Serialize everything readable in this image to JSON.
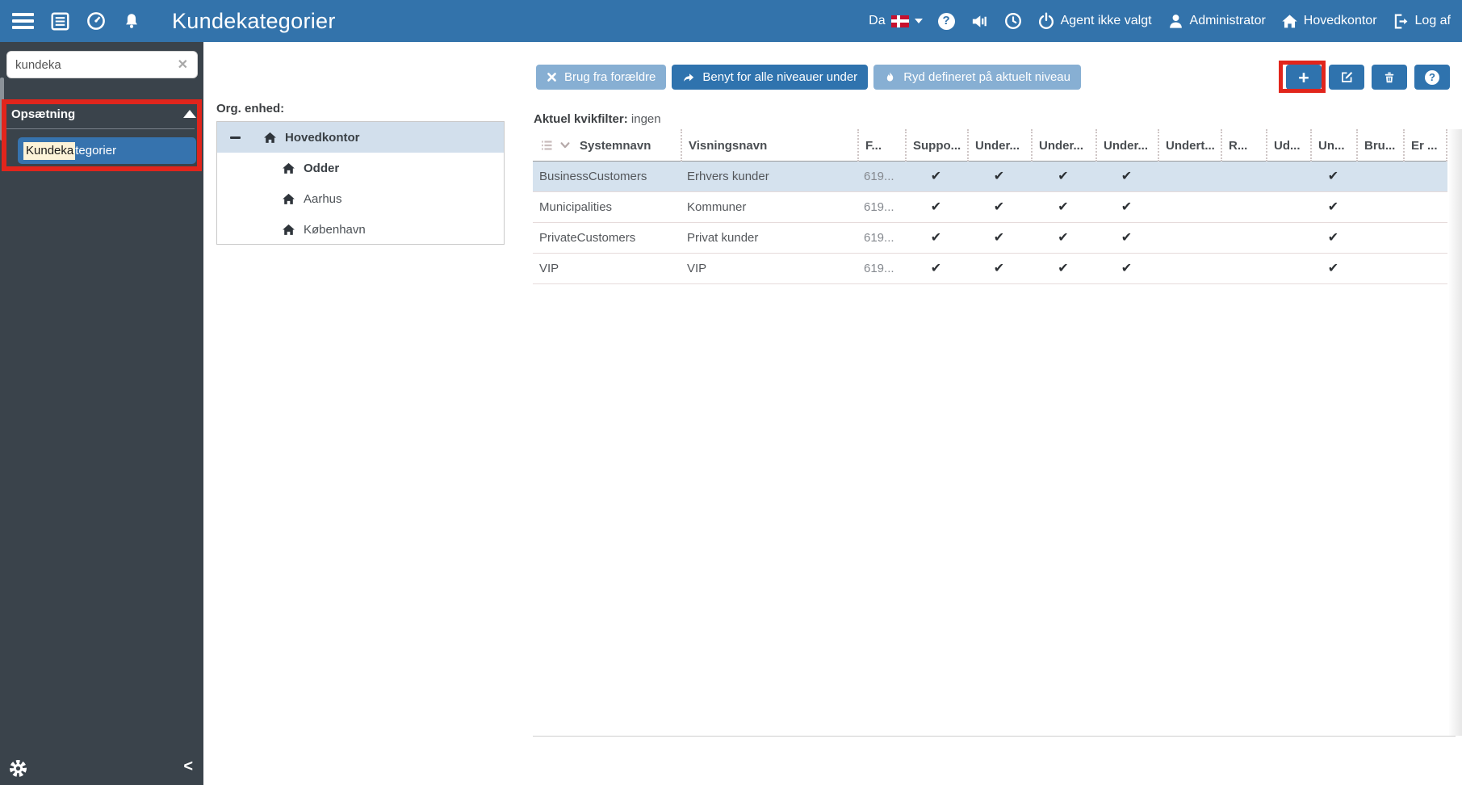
{
  "app": {
    "title": "Kundekategorier"
  },
  "topbar": {
    "language": "Da",
    "agent_label": "Agent ikke valgt",
    "user_label": "Administrator",
    "office_label": "Hovedkontor",
    "logout_label": "Log af"
  },
  "sidebar": {
    "search_value": "kundeka",
    "section_title": "Opsætning",
    "active_item_highlight": "Kundeka",
    "active_item_rest": "tegorier"
  },
  "org": {
    "label": "Org. enhed:",
    "nodes": [
      {
        "name": "Hovedkontor"
      },
      {
        "name": "Odder"
      },
      {
        "name": "Aarhus"
      },
      {
        "name": "København"
      }
    ]
  },
  "toolbar": {
    "use_from_parent": "Brug fra forældre",
    "apply_all_levels": "Benyt for alle niveauer under",
    "clear_current_level": "Ryd defineret på aktuelt niveau"
  },
  "quickfilter": {
    "label": "Aktuel kvikfilter:",
    "value": "ingen"
  },
  "table": {
    "columns": [
      "Systemnavn",
      "Visningsnavn",
      "F...",
      "Suppo...",
      "Under...",
      "Under...",
      "Under...",
      "Undert...",
      "R...",
      "Ud...",
      "Un...",
      "Bru...",
      "Er ..."
    ],
    "check_glyph": "✔",
    "rows": [
      {
        "selected": true,
        "cells": [
          "BusinessCustomers",
          "Erhvers kunder",
          "619...",
          true,
          true,
          true,
          true,
          false,
          false,
          false,
          true,
          false,
          false
        ]
      },
      {
        "selected": false,
        "cells": [
          "Municipalities",
          "Kommuner",
          "619...",
          true,
          true,
          true,
          true,
          false,
          false,
          false,
          true,
          false,
          false
        ]
      },
      {
        "selected": false,
        "cells": [
          "PrivateCustomers",
          "Privat kunder",
          "619...",
          true,
          true,
          true,
          true,
          false,
          false,
          false,
          true,
          false,
          false
        ]
      },
      {
        "selected": false,
        "cells": [
          "VIP",
          "VIP",
          "619...",
          true,
          true,
          true,
          true,
          false,
          false,
          false,
          true,
          false,
          false
        ]
      }
    ]
  },
  "glyphs": {
    "clear": "✕",
    "question": "?",
    "plus": "+",
    "chevron_left": "<"
  },
  "colors": {
    "topbar_blue": "#3373ab",
    "sidebar_dark": "#3a434b",
    "accent_button": "#2f73ae",
    "light_button": "#87afd3",
    "row_selection": "#d5e2ee",
    "tree_selection": "#d2dfec",
    "annotation_red": "#e1251c",
    "search_highlight": "#fcf3d8"
  }
}
